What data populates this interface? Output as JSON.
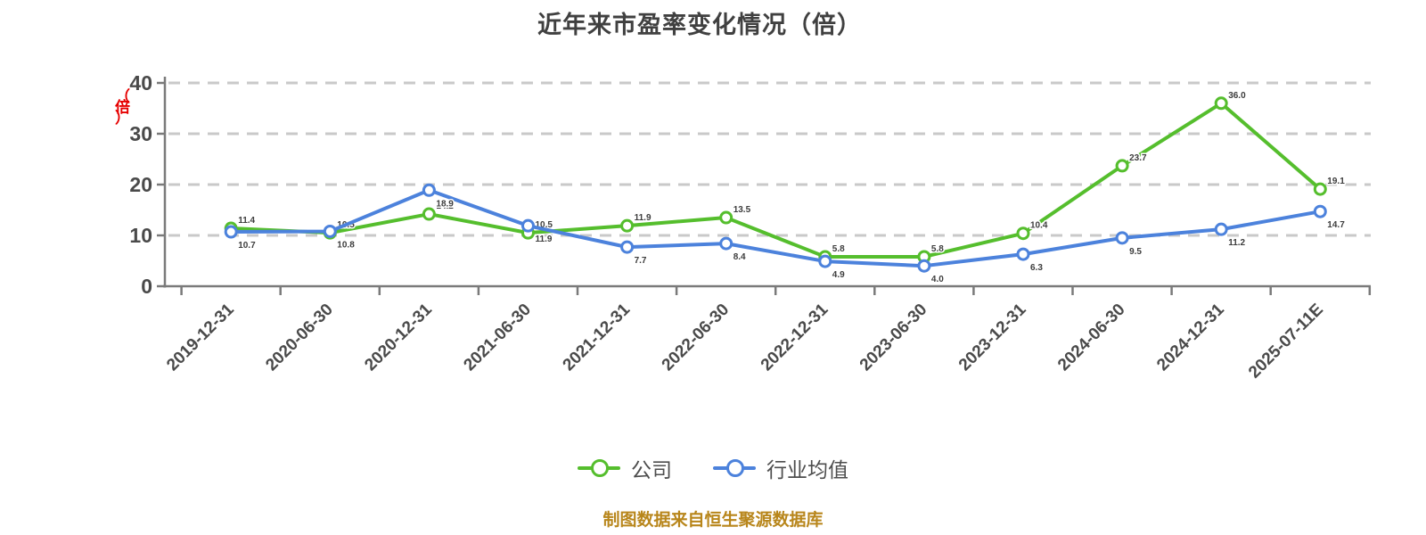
{
  "title": "近年来市盈率变化情况（倍）",
  "y_axis_unit": "（倍）",
  "source_note": "制图数据来自恒生聚源数据库",
  "chart_data": {
    "type": "line",
    "title": "近年来市盈率变化情况（倍）",
    "categories": [
      "2019-12-31",
      "2020-06-30",
      "2020-12-31",
      "2021-06-30",
      "2021-12-31",
      "2022-06-30",
      "2022-12-31",
      "2023-06-30",
      "2023-12-31",
      "2024-06-30",
      "2024-12-31",
      "2025-07-11E"
    ],
    "series": [
      {
        "name": "公司",
        "color": "#55be2d",
        "marker": "white-filled-circle",
        "values": [
          11.4,
          10.5,
          14.2,
          10.5,
          11.9,
          13.5,
          5.8,
          5.8,
          10.4,
          23.7,
          36.0,
          19.1
        ]
      },
      {
        "name": "行业均值",
        "color": "#4c82dc",
        "marker": "white-filled-circle",
        "values": [
          10.7,
          10.8,
          18.9,
          11.9,
          7.7,
          8.4,
          4.9,
          4.0,
          6.3,
          9.5,
          11.2,
          14.7
        ]
      }
    ],
    "ylabel": "（倍）",
    "ylim": [
      0,
      40
    ],
    "yticks": [
      0,
      10,
      20,
      30,
      40
    ],
    "grid": "horizontal-dashed",
    "grid_color": "#c9c9c9",
    "axis_color": "#7a7a7a",
    "legend_position": "bottom",
    "point_labels_visible": true
  }
}
